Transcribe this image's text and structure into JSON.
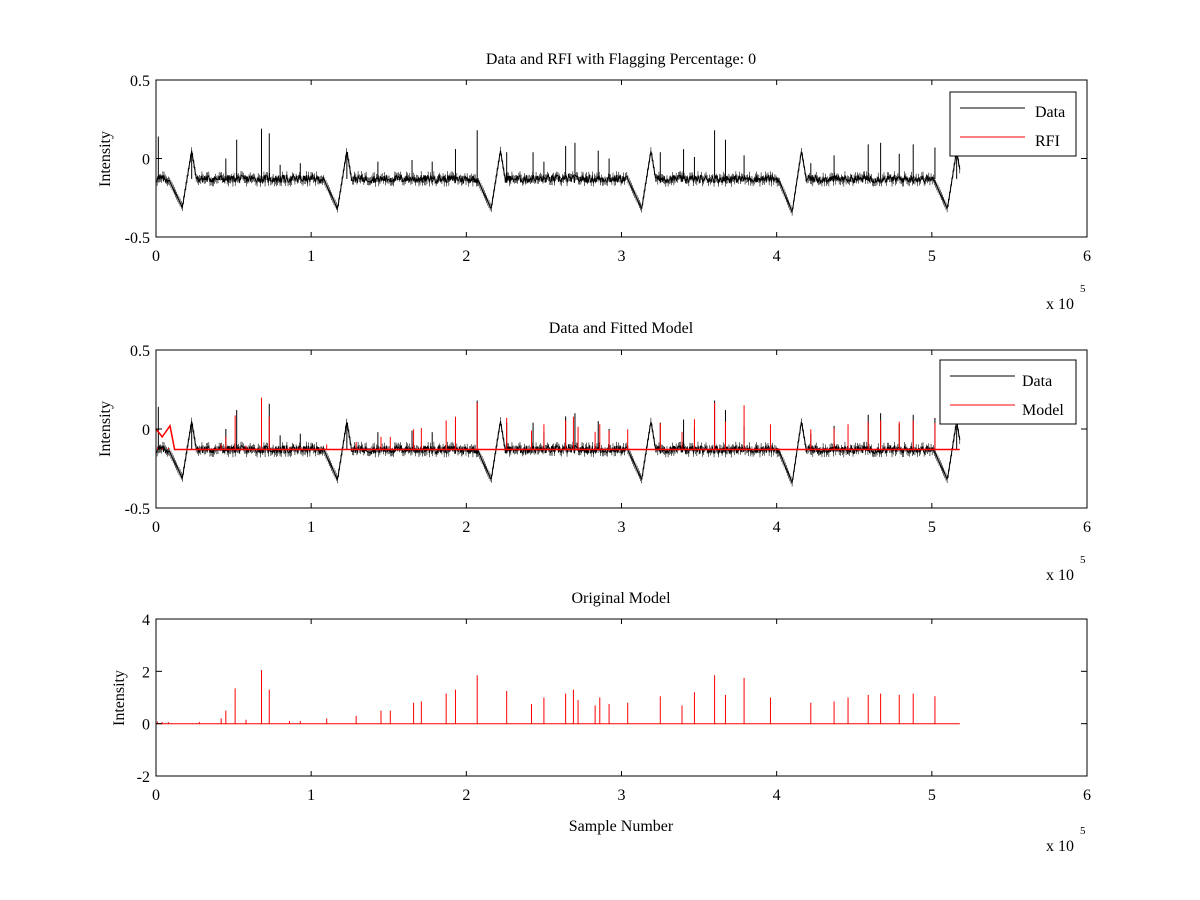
{
  "figure": {
    "panels": [
      {
        "title": "Data and RFI with Flagging Percentage: 0",
        "ylabel": "Intensity",
        "xlabel": ""
      },
      {
        "title": "Data and Fitted Model",
        "ylabel": "Intensity",
        "xlabel": ""
      },
      {
        "title": "Original Model",
        "ylabel": "Intensity",
        "xlabel": "Sample Number"
      }
    ]
  },
  "chart_data": [
    {
      "type": "line",
      "title": "Data and RFI with Flagging Percentage: 0",
      "xlabel": "",
      "ylabel": "Intensity",
      "xlim": [
        0,
        600000
      ],
      "ylim": [
        -0.5,
        0.5
      ],
      "xticks": [
        0,
        100000,
        200000,
        300000,
        400000,
        500000,
        600000
      ],
      "xtick_labels": [
        "0",
        "1",
        "2",
        "3",
        "4",
        "5",
        "6"
      ],
      "yticks": [
        0.5,
        0,
        -0.5
      ],
      "ytick_labels": [
        "0.5",
        "0",
        "-0.5"
      ],
      "x_exponent_label": "x 10",
      "x_exponent_power": "5",
      "legend": {
        "position": "top-right",
        "entries": [
          "Data",
          "RFI"
        ]
      },
      "grid": false,
      "series": [
        {
          "name": "Data",
          "color": "#000000",
          "x_max": 518000,
          "baseline": -0.13,
          "noise": 0.025,
          "dips": [
            {
              "x": 17000,
              "min": -0.31
            },
            {
              "x": 117000,
              "min": -0.32
            },
            {
              "x": 216000,
              "min": -0.32
            },
            {
              "x": 313000,
              "min": -0.32
            },
            {
              "x": 410000,
              "min": -0.34
            },
            {
              "x": 510000,
              "min": -0.32
            }
          ],
          "spikes": [
            {
              "x": 1500,
              "value": 0.14
            },
            {
              "x": 23000,
              "value": 0.05
            },
            {
              "x": 45000,
              "value": 0.0
            },
            {
              "x": 52000,
              "value": 0.12
            },
            {
              "x": 68000,
              "value": 0.19
            },
            {
              "x": 73000,
              "value": 0.16
            },
            {
              "x": 80000,
              "value": -0.04
            },
            {
              "x": 93000,
              "value": -0.03
            },
            {
              "x": 123000,
              "value": 0.04
            },
            {
              "x": 143000,
              "value": -0.02
            },
            {
              "x": 165000,
              "value": -0.01
            },
            {
              "x": 178000,
              "value": -0.02
            },
            {
              "x": 193000,
              "value": 0.06
            },
            {
              "x": 207000,
              "value": 0.18
            },
            {
              "x": 226000,
              "value": 0.04
            },
            {
              "x": 243000,
              "value": 0.04
            },
            {
              "x": 250000,
              "value": -0.02
            },
            {
              "x": 264000,
              "value": 0.08
            },
            {
              "x": 270000,
              "value": 0.1
            },
            {
              "x": 285000,
              "value": 0.05
            },
            {
              "x": 292000,
              "value": 0.0
            },
            {
              "x": 325000,
              "value": 0.04
            },
            {
              "x": 340000,
              "value": 0.06
            },
            {
              "x": 347000,
              "value": 0.01
            },
            {
              "x": 360000,
              "value": 0.18
            },
            {
              "x": 367000,
              "value": 0.12
            },
            {
              "x": 379000,
              "value": 0.02
            },
            {
              "x": 422000,
              "value": -0.03
            },
            {
              "x": 437000,
              "value": 0.02
            },
            {
              "x": 459000,
              "value": 0.09
            },
            {
              "x": 467000,
              "value": 0.1
            },
            {
              "x": 479000,
              "value": 0.03
            },
            {
              "x": 488000,
              "value": 0.09
            },
            {
              "x": 502000,
              "value": 0.07
            },
            {
              "x": 516000,
              "value": 0.02
            }
          ]
        },
        {
          "name": "RFI",
          "color": "#ff0000",
          "values": []
        }
      ]
    },
    {
      "type": "line",
      "title": "Data and Fitted Model",
      "xlabel": "",
      "ylabel": "Intensity",
      "xlim": [
        0,
        600000
      ],
      "ylim": [
        -0.5,
        0.5
      ],
      "xticks": [
        0,
        100000,
        200000,
        300000,
        400000,
        500000,
        600000
      ],
      "xtick_labels": [
        "0",
        "1",
        "2",
        "3",
        "4",
        "5",
        "6"
      ],
      "yticks": [
        0.5,
        0,
        -0.5
      ],
      "ytick_labels": [
        "0.5",
        "0",
        "-0.5"
      ],
      "x_exponent_label": "x 10",
      "x_exponent_power": "5",
      "legend": {
        "position": "top-right",
        "entries": [
          "Data",
          "Model"
        ]
      },
      "grid": false,
      "series": [
        {
          "name": "Data",
          "color": "#000000",
          "same_as_panel": 1
        },
        {
          "name": "Model",
          "color": "#ff0000",
          "x_max": 518000,
          "baseline": -0.13,
          "spikes_from_panel": 3,
          "spike_scale": 0.1
        }
      ]
    },
    {
      "type": "line",
      "title": "Original Model",
      "xlabel": "Sample Number",
      "ylabel": "Intensity",
      "xlim": [
        0,
        600000
      ],
      "ylim": [
        -2,
        4
      ],
      "xticks": [
        0,
        100000,
        200000,
        300000,
        400000,
        500000,
        600000
      ],
      "xtick_labels": [
        "0",
        "1",
        "2",
        "3",
        "4",
        "5",
        "6"
      ],
      "yticks": [
        4,
        2,
        0,
        -2
      ],
      "ytick_labels": [
        "4",
        "2",
        "0",
        "-2"
      ],
      "x_exponent_label": "x 10",
      "x_exponent_power": "5",
      "grid": false,
      "series": [
        {
          "name": "",
          "color": "#ff0000",
          "x_max": 518000,
          "baseline": 0.0,
          "spikes": [
            {
              "x": 1000,
              "value": 0.08
            },
            {
              "x": 4000,
              "value": 0.07
            },
            {
              "x": 8000,
              "value": 0.06
            },
            {
              "x": 28000,
              "value": 0.06
            },
            {
              "x": 42000,
              "value": 0.2
            },
            {
              "x": 45000,
              "value": 0.5
            },
            {
              "x": 51000,
              "value": 1.35
            },
            {
              "x": 58000,
              "value": 0.15
            },
            {
              "x": 68000,
              "value": 2.05
            },
            {
              "x": 73000,
              "value": 1.3
            },
            {
              "x": 86000,
              "value": 0.1
            },
            {
              "x": 93000,
              "value": 0.1
            },
            {
              "x": 110000,
              "value": 0.2
            },
            {
              "x": 129000,
              "value": 0.3
            },
            {
              "x": 145000,
              "value": 0.5
            },
            {
              "x": 151000,
              "value": 0.5
            },
            {
              "x": 166000,
              "value": 0.8
            },
            {
              "x": 171000,
              "value": 0.85
            },
            {
              "x": 187000,
              "value": 1.15
            },
            {
              "x": 193000,
              "value": 1.3
            },
            {
              "x": 207000,
              "value": 1.85
            },
            {
              "x": 226000,
              "value": 1.25
            },
            {
              "x": 242000,
              "value": 0.75
            },
            {
              "x": 250000,
              "value": 1.0
            },
            {
              "x": 264000,
              "value": 1.15
            },
            {
              "x": 269000,
              "value": 1.3
            },
            {
              "x": 272000,
              "value": 0.9
            },
            {
              "x": 283000,
              "value": 0.7
            },
            {
              "x": 286000,
              "value": 1.0
            },
            {
              "x": 292000,
              "value": 0.75
            },
            {
              "x": 304000,
              "value": 0.8
            },
            {
              "x": 325000,
              "value": 1.05
            },
            {
              "x": 339000,
              "value": 0.7
            },
            {
              "x": 347000,
              "value": 1.2
            },
            {
              "x": 360000,
              "value": 1.85
            },
            {
              "x": 367000,
              "value": 1.1
            },
            {
              "x": 379000,
              "value": 1.75
            },
            {
              "x": 396000,
              "value": 1.0
            },
            {
              "x": 422000,
              "value": 0.8
            },
            {
              "x": 437000,
              "value": 0.85
            },
            {
              "x": 446000,
              "value": 1.0
            },
            {
              "x": 459000,
              "value": 1.1
            },
            {
              "x": 467000,
              "value": 1.15
            },
            {
              "x": 479000,
              "value": 1.1
            },
            {
              "x": 488000,
              "value": 1.15
            },
            {
              "x": 502000,
              "value": 1.05
            }
          ]
        }
      ]
    }
  ]
}
